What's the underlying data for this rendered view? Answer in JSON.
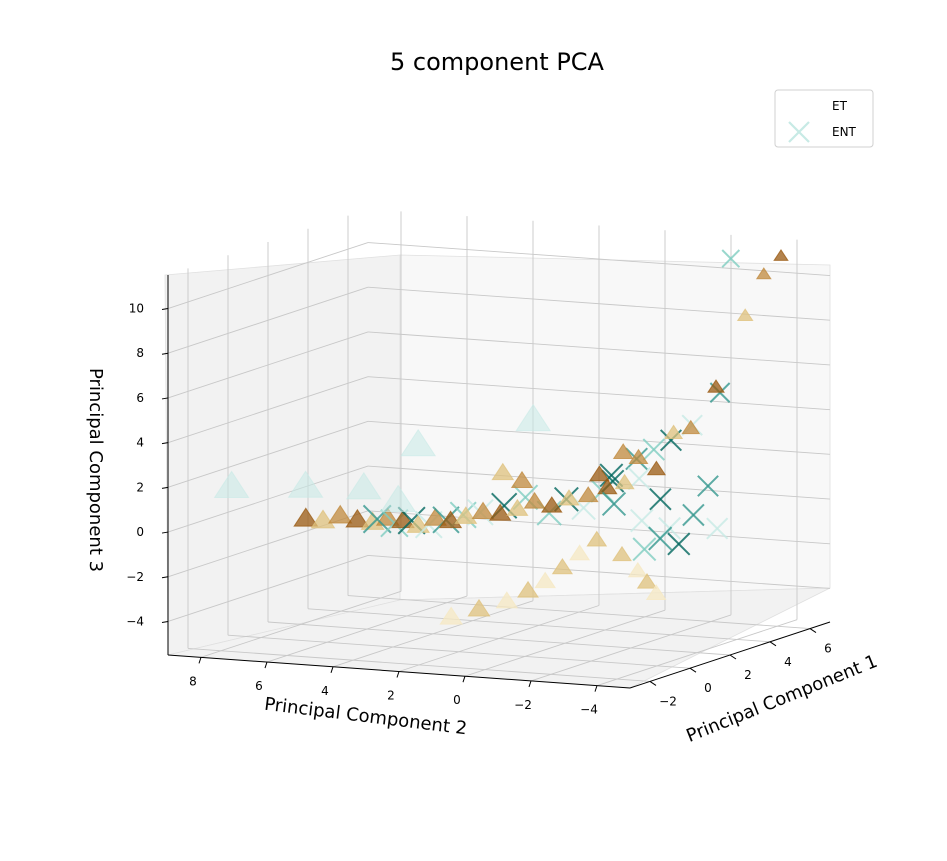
{
  "chart_data": {
    "type": "scatter",
    "title": "5 component PCA",
    "xlabel": "Principal Component 1",
    "ylabel": "Principal Component 2",
    "zlabel": "Principal Component 3",
    "x_ticks": [
      "−2",
      "0",
      "2",
      "4",
      "6"
    ],
    "y_ticks": [
      "8",
      "6",
      "4",
      "2",
      "0",
      "−2",
      "−4"
    ],
    "z_ticks": [
      "10",
      "8",
      "6",
      "4",
      "2",
      "0",
      "−2",
      "−4"
    ],
    "xlim": [
      -3,
      7
    ],
    "ylim": [
      -5,
      9
    ],
    "zlim": [
      -5.5,
      11.5
    ],
    "legend_position": "top-right",
    "colors": {
      "et_dark": "#9a5a12",
      "et_mid": "#c08a3e",
      "et_light": "#dfc27d",
      "et_pale": "#f6e8c3",
      "ent_pale": "#c7eae5",
      "ent_light": "#80cdc1",
      "ent_mid": "#35978f",
      "ent_dark": "#01665e"
    },
    "series": [
      {
        "name": "ET",
        "marker": "triangle",
        "points": [
          [
            6.2,
            -4.0,
            11.0
          ],
          [
            6.0,
            -3.6,
            10.2
          ],
          [
            5.4,
            -3.4,
            8.5
          ],
          [
            4.6,
            -3.0,
            5.5
          ],
          [
            4.0,
            -2.6,
            3.8
          ],
          [
            3.8,
            -2.2,
            3.6
          ],
          [
            3.6,
            -1.8,
            2.0
          ],
          [
            3.2,
            -1.5,
            2.6
          ],
          [
            3.0,
            -1.2,
            1.5
          ],
          [
            2.8,
            -0.8,
            1.3
          ],
          [
            2.5,
            -0.4,
            1.0
          ],
          [
            2.2,
            0.0,
            0.9
          ],
          [
            2.0,
            0.4,
            0.6
          ],
          [
            1.8,
            0.8,
            0.8
          ],
          [
            1.6,
            1.2,
            0.5
          ],
          [
            1.4,
            1.6,
            0.3
          ],
          [
            1.2,
            2.0,
            0.4
          ],
          [
            1.0,
            2.4,
            0.2
          ],
          [
            0.9,
            2.8,
            0.0
          ],
          [
            0.8,
            3.2,
            0.1
          ],
          [
            0.6,
            3.6,
            -0.2
          ],
          [
            0.5,
            4.0,
            0.0
          ],
          [
            0.4,
            4.4,
            0.1
          ],
          [
            0.3,
            4.8,
            -0.1
          ],
          [
            0.2,
            5.2,
            0.0
          ],
          [
            0.0,
            5.6,
            0.2
          ],
          [
            -0.2,
            6.0,
            0.0
          ],
          [
            -0.4,
            6.4,
            0.1
          ],
          [
            2.6,
            -0.6,
            -1.0
          ],
          [
            2.4,
            -0.2,
            -1.6
          ],
          [
            2.2,
            0.2,
            -2.2
          ],
          [
            2.0,
            0.6,
            -2.8
          ],
          [
            1.8,
            1.0,
            -3.2
          ],
          [
            1.4,
            1.4,
            -3.6
          ],
          [
            1.0,
            2.0,
            -3.9
          ],
          [
            0.6,
            2.6,
            -4.2
          ],
          [
            3.2,
            -1.0,
            -1.8
          ],
          [
            3.0,
            -1.6,
            -2.4
          ],
          [
            2.8,
            -2.0,
            -2.8
          ],
          [
            2.6,
            -2.4,
            -3.2
          ],
          [
            1.5,
            1.0,
            1.8
          ],
          [
            1.2,
            1.4,
            2.2
          ],
          [
            2.4,
            -0.8,
            2.0
          ],
          [
            2.6,
            -1.4,
            3.0
          ]
        ]
      },
      {
        "name": "ENT",
        "marker": "x",
        "points": [
          [
            6.0,
            -2.6,
            10.8
          ],
          [
            4.8,
            -3.0,
            5.2
          ],
          [
            4.4,
            -2.4,
            3.8
          ],
          [
            4.0,
            -2.0,
            3.2
          ],
          [
            3.8,
            -1.6,
            2.8
          ],
          [
            3.6,
            -1.2,
            2.4
          ],
          [
            3.4,
            -1.4,
            1.6
          ],
          [
            3.0,
            -0.8,
            1.8
          ],
          [
            3.2,
            -0.4,
            1.0
          ],
          [
            2.8,
            -1.0,
            0.6
          ],
          [
            2.6,
            -0.2,
            0.4
          ],
          [
            2.4,
            0.2,
            0.8
          ],
          [
            2.2,
            0.6,
            0.2
          ],
          [
            3.8,
            -2.8,
            0.0
          ],
          [
            3.6,
            -2.2,
            -0.6
          ],
          [
            3.4,
            -2.6,
            -1.2
          ],
          [
            3.0,
            -1.8,
            -1.4
          ],
          [
            2.8,
            -2.4,
            -0.8
          ],
          [
            3.2,
            -1.6,
            -0.2
          ],
          [
            3.8,
            -1.8,
            0.6
          ],
          [
            1.2,
            2.6,
            0.2
          ],
          [
            1.0,
            3.0,
            0.0
          ],
          [
            0.8,
            3.4,
            -0.2
          ],
          [
            0.6,
            3.8,
            0.0
          ],
          [
            0.4,
            4.2,
            -0.1
          ],
          [
            0.2,
            4.6,
            0.1
          ],
          [
            1.4,
            2.2,
            0.3
          ],
          [
            1.6,
            1.6,
            0.6
          ],
          [
            2.0,
            1.2,
            0.9
          ],
          [
            4.2,
            -3.0,
            1.2
          ],
          [
            4.0,
            -3.4,
            -0.6
          ],
          [
            3.4,
            -0.6,
            1.4
          ]
        ]
      },
      {
        "name": "",
        "marker": "triangle",
        "points": [
          [
            -1.8,
            7.8,
            1.8
          ],
          [
            -1.4,
            5.8,
            1.9
          ],
          [
            -0.8,
            4.4,
            1.8
          ],
          [
            -0.4,
            3.6,
            1.2
          ],
          [
            1.4,
            0.6,
            4.6
          ],
          [
            0.6,
            3.6,
            3.4
          ]
        ]
      }
    ]
  }
}
